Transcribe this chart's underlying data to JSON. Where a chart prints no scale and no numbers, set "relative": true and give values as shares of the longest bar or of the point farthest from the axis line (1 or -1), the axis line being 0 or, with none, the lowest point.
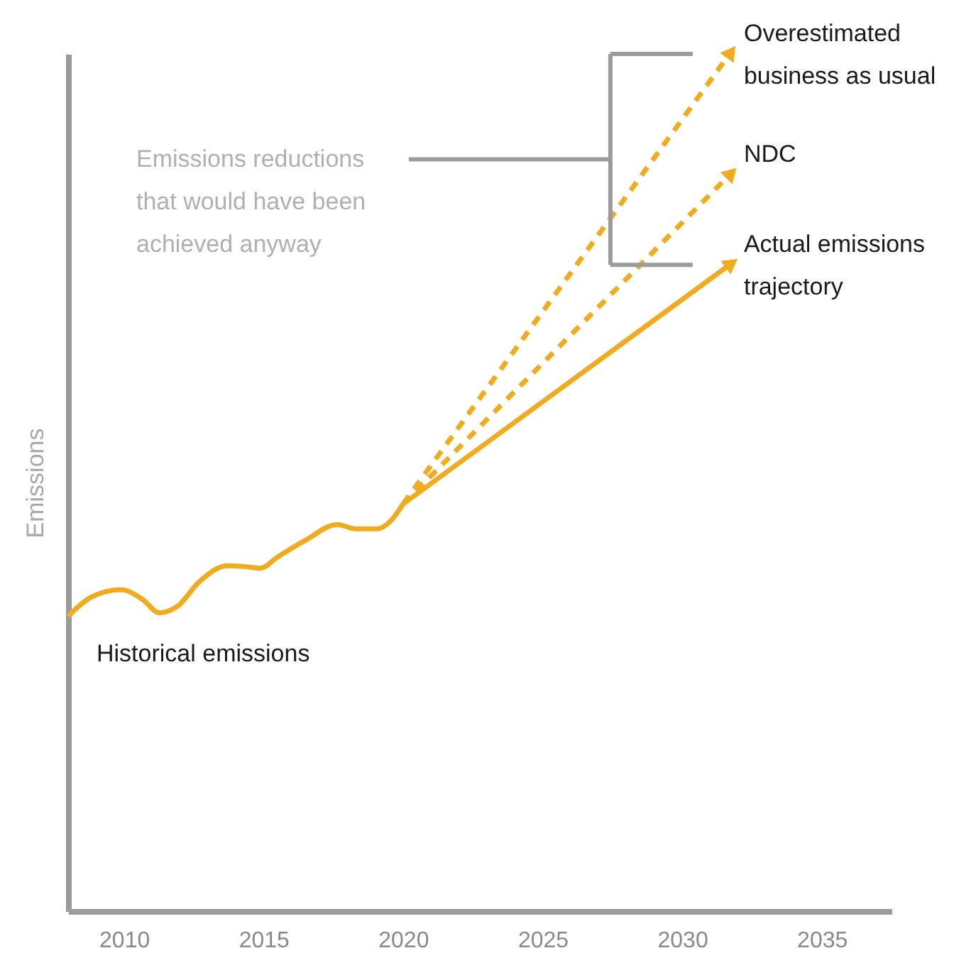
{
  "chart_data": {
    "type": "line",
    "relative": true,
    "ylabel": "Emissions",
    "xlim": [
      2008,
      2037.5
    ],
    "xticks": [
      2010,
      2015,
      2020,
      2025,
      2030,
      2035
    ],
    "grid": false,
    "annotations": [
      "Emissions reductions that would have been achieved anyway"
    ],
    "series": [
      {
        "name": "Historical emissions",
        "color": "#f0ab1e",
        "line_style": "solid",
        "x": [
          2008,
          2008.87,
          2009.89,
          2010.65,
          2011.27,
          2011.93,
          2012.69,
          2013.71,
          2014.33,
          2014.89,
          2015.5,
          2016.52,
          2017.64,
          2018.31,
          2019.07,
          2019.58,
          2020
        ],
        "values": [
          0.344,
          0.367,
          0.375,
          0.364,
          0.348,
          0.356,
          0.384,
          0.403,
          0.402,
          0.4,
          0.413,
          0.433,
          0.451,
          0.446,
          0.446,
          0.456,
          0.475
        ]
      },
      {
        "name": "Overestimated business as usual",
        "color": "#f0ab1e",
        "line_style": "dashed",
        "x": [
          2020,
          2031.7
        ],
        "values": [
          0.475,
          1
        ]
      },
      {
        "name": "NDC",
        "color": "#f0ab1e",
        "line_style": "dashed",
        "x": [
          2020,
          2031.7
        ],
        "values": [
          0.475,
          0.859
        ]
      },
      {
        "name": "Actual emissions trajectory",
        "color": "#f0ab1e",
        "line_style": "solid",
        "x": [
          2020,
          2031.7
        ],
        "values": [
          0.475,
          0.754
        ]
      }
    ]
  }
}
